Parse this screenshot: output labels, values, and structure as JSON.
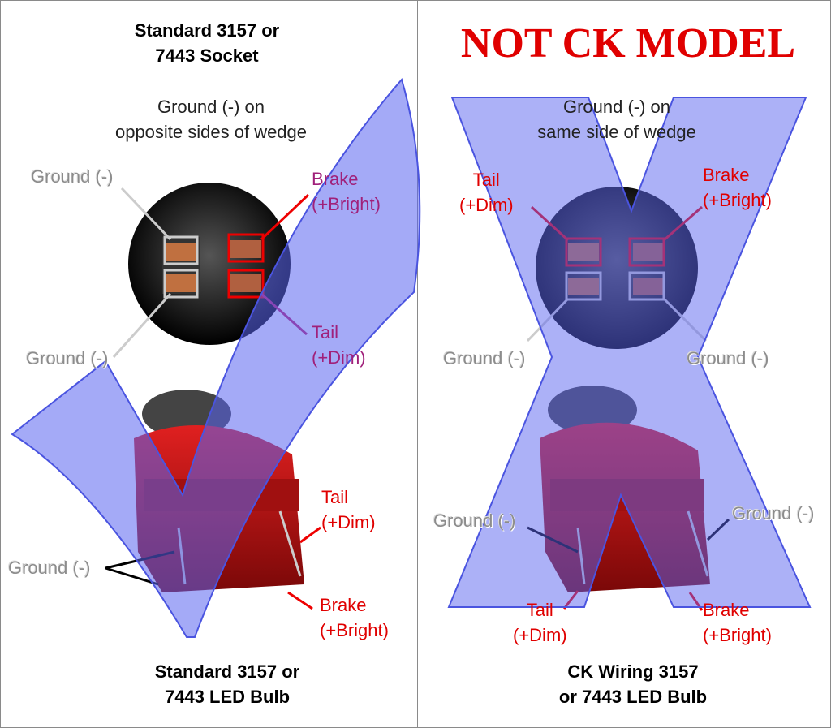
{
  "left": {
    "title_line1": "Standard 3157 or",
    "title_line2": "7443 Socket",
    "note_line1": "Ground (-) on",
    "note_line2": "opposite sides of wedge",
    "socket_labels": {
      "ground_top": "Ground (-)",
      "ground_bottom": "Ground (-)",
      "brake_line1": "Brake",
      "brake_line2": "(+Bright)",
      "tail_line1": "Tail",
      "tail_line2": "(+Dim)"
    },
    "bulb_labels": {
      "ground": "Ground (-)",
      "tail_line1": "Tail",
      "tail_line2": "(+Dim)",
      "brake_line1": "Brake",
      "brake_line2": "(+Bright)"
    },
    "footer_line1": "Standard 3157 or",
    "footer_line2": "7443 LED Bulb",
    "overlay_icon": "checkmark-icon"
  },
  "right": {
    "banner": "NOT CK MODEL",
    "note_line1": "Ground (-) on",
    "note_line2": "same side of wedge",
    "socket_labels": {
      "tail_line1": "Tail",
      "tail_line2": "(+Dim)",
      "brake_line1": "Brake",
      "brake_line2": "(+Bright)",
      "ground_left": "Ground (-)",
      "ground_right": "Ground (-)"
    },
    "bulb_labels": {
      "ground_left": "Ground (-)",
      "ground_right": "Ground (-)",
      "tail_line1": "Tail",
      "tail_line2": "(+Dim)",
      "brake_line1": "Brake",
      "brake_line2": "(+Bright)"
    },
    "footer_line1": "CK Wiring 3157",
    "footer_line2": "or 7443 LED Bulb",
    "overlay_icon": "x-mark-icon"
  },
  "colors": {
    "overlay": "#5a64f0",
    "label_red": "#e00000",
    "label_purple": "#a0207a",
    "bulb_red": "#c01010"
  }
}
